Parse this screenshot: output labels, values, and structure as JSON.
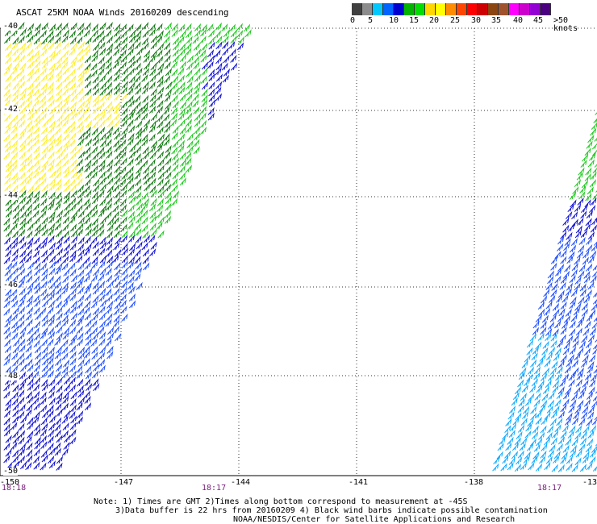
{
  "title": "ASCAT 25KM NOAA Winds 20160209 descending",
  "legend": {
    "colors": [
      "#404040",
      "#8c8c8c",
      "#00c8ff",
      "#0064ff",
      "#0000cd",
      "#00b400",
      "#00dd00",
      "#ffd700",
      "#ffff00",
      "#ff8c00",
      "#ff4500",
      "#ff0000",
      "#cc0000",
      "#8b4513",
      "#a0522d",
      "#ff00ff",
      "#cc00cc",
      "#9400d3",
      "#4b0082"
    ],
    "tick_labels": [
      "0",
      "5",
      "10",
      "15",
      "20",
      "25",
      "30",
      "35",
      "40",
      "45",
      ">50 knots"
    ]
  },
  "lat_labels": [
    "-40",
    "-42",
    "-44",
    "-46",
    "-48",
    "-50"
  ],
  "lon_labels": [
    "-150",
    "-147",
    "-144",
    "-141",
    "-138",
    "-13"
  ],
  "time_labels": [
    "18:18",
    "18:17",
    "18:17"
  ],
  "notes": [
    "Note: 1) Times are GMT 2)Times along bottom correspond to measurement at -45S",
    "3)Data buffer is 22 hrs from 20160209 4) Black wind barbs indicate possible contamination",
    "NOAA/NESDIS/Center for Satellite Applications and Research"
  ],
  "swath_colors": {
    "yellow": "#ffee33",
    "dark_green": "#127a12",
    "green": "#1fc81f",
    "blue": "#1010d0",
    "mid_blue": "#2050ff",
    "light_blue": "#10aaff"
  }
}
